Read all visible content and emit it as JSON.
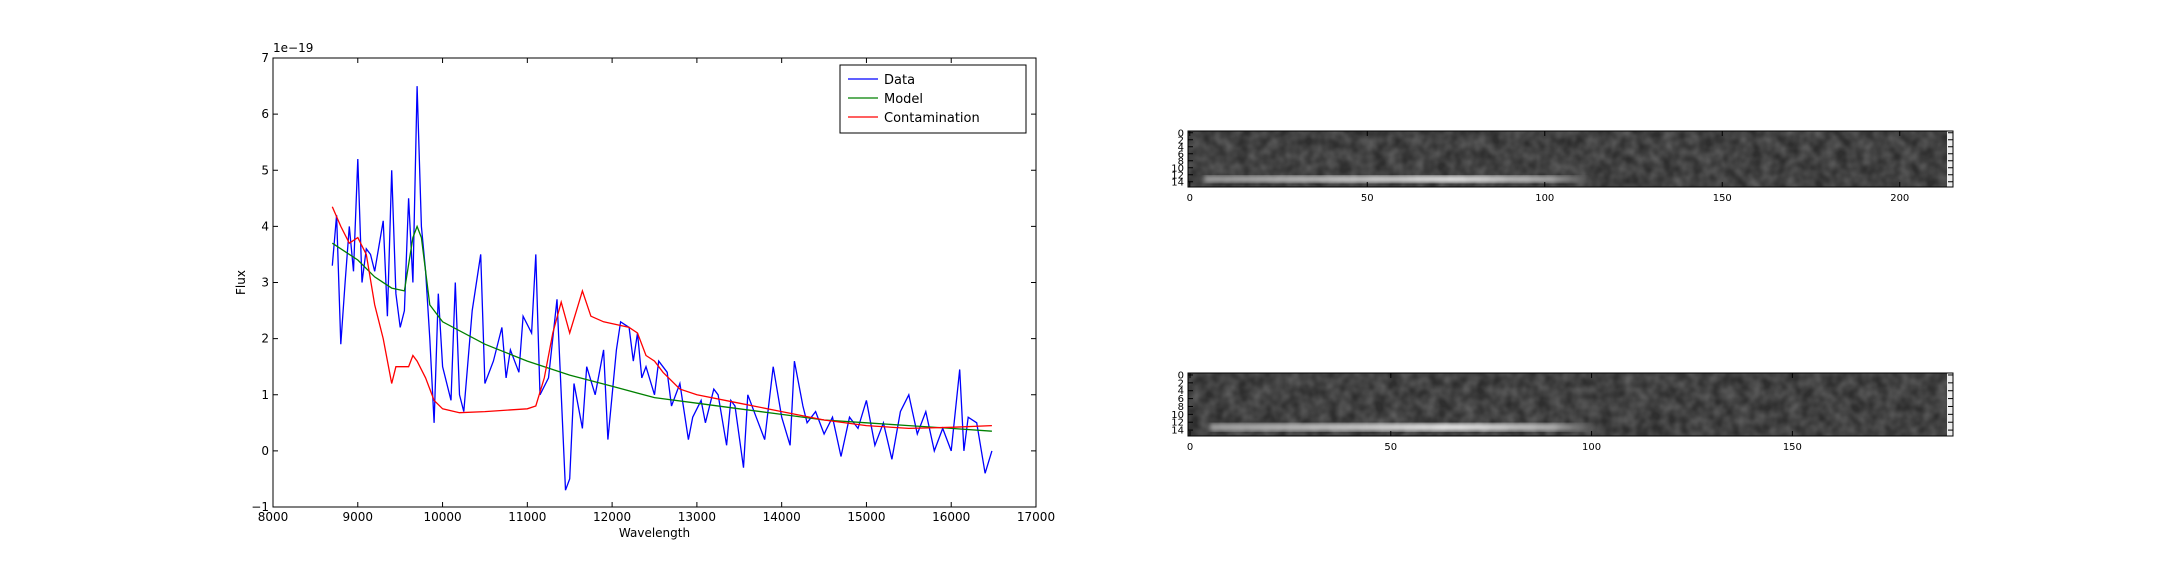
{
  "chart_data": [
    {
      "type": "line",
      "xlabel": "Wavelength",
      "ylabel": "Flux",
      "offset_label": "1e−19",
      "xlim": [
        8000,
        17000
      ],
      "xticks": [
        8000,
        9000,
        10000,
        11000,
        12000,
        13000,
        14000,
        15000,
        16000,
        17000
      ],
      "ylim": [
        -1,
        7
      ],
      "yticks": [
        {
          "value": -1,
          "label": "−1"
        },
        0,
        1,
        2,
        3,
        4,
        5,
        6,
        7
      ],
      "legend": "upper right",
      "series": [
        {
          "name": "Data",
          "color": "#0000ff",
          "x": [
            8700,
            8750,
            8800,
            8850,
            8900,
            8950,
            9000,
            9050,
            9100,
            9150,
            9200,
            9300,
            9350,
            9400,
            9450,
            9500,
            9550,
            9600,
            9650,
            9700,
            9750,
            9800,
            9850,
            9900,
            9950,
            10000,
            10100,
            10150,
            10200,
            10250,
            10350,
            10450,
            10500,
            10600,
            10700,
            10750,
            10800,
            10900,
            10950,
            11050,
            11100,
            11150,
            11250,
            11350,
            11450,
            11500,
            11550,
            11650,
            11700,
            11800,
            11900,
            11950,
            12050,
            12100,
            12200,
            12250,
            12300,
            12350,
            12400,
            12500,
            12550,
            12650,
            12700,
            12800,
            12900,
            12950,
            13050,
            13100,
            13200,
            13250,
            13350,
            13400,
            13450,
            13550,
            13600,
            13700,
            13800,
            13900,
            14000,
            14100,
            14150,
            14250,
            14300,
            14400,
            14500,
            14600,
            14700,
            14800,
            14900,
            15000,
            15100,
            15200,
            15300,
            15400,
            15500,
            15600,
            15700,
            15800,
            15900,
            16000,
            16100,
            16150,
            16200,
            16300,
            16400,
            16480
          ],
          "values": [
            3.3,
            4.2,
            1.9,
            3.0,
            4.0,
            3.2,
            5.2,
            3.0,
            3.6,
            3.5,
            3.2,
            4.1,
            2.4,
            5.0,
            2.8,
            2.2,
            2.5,
            4.5,
            3.0,
            6.5,
            4.0,
            3.2,
            2.0,
            0.5,
            2.8,
            1.5,
            0.9,
            3.0,
            1.0,
            0.7,
            2.5,
            3.5,
            1.2,
            1.6,
            2.2,
            1.3,
            1.8,
            1.4,
            2.4,
            2.1,
            3.5,
            1.0,
            1.3,
            2.7,
            -0.7,
            -0.5,
            1.2,
            0.4,
            1.5,
            1.0,
            1.8,
            0.2,
            1.8,
            2.3,
            2.2,
            1.6,
            2.1,
            1.3,
            1.5,
            1.0,
            1.6,
            1.4,
            0.8,
            1.2,
            0.2,
            0.6,
            0.9,
            0.5,
            1.1,
            1.0,
            0.1,
            0.9,
            0.8,
            -0.3,
            1.0,
            0.6,
            0.2,
            1.5,
            0.6,
            0.1,
            1.6,
            0.8,
            0.5,
            0.7,
            0.3,
            0.6,
            -0.1,
            0.6,
            0.4,
            0.9,
            0.1,
            0.5,
            -0.15,
            0.7,
            1.0,
            0.3,
            0.7,
            0.0,
            0.4,
            0.0,
            1.45,
            0.0,
            0.6,
            0.5,
            -0.4,
            0.0
          ]
        },
        {
          "name": "Model",
          "color": "#008000",
          "x": [
            8700,
            9000,
            9200,
            9400,
            9550,
            9650,
            9700,
            9750,
            9850,
            10000,
            10500,
            11000,
            11500,
            12000,
            12500,
            13000,
            13500,
            14000,
            14500,
            15000,
            15500,
            16000,
            16480
          ],
          "values": [
            3.7,
            3.4,
            3.1,
            2.9,
            2.85,
            3.8,
            4.0,
            3.8,
            2.6,
            2.3,
            1.9,
            1.6,
            1.35,
            1.15,
            0.95,
            0.85,
            0.75,
            0.65,
            0.55,
            0.5,
            0.45,
            0.4,
            0.35
          ]
        },
        {
          "name": "Contamination",
          "color": "#ff0000",
          "x": [
            8700,
            8800,
            8900,
            9000,
            9100,
            9200,
            9300,
            9400,
            9450,
            9600,
            9650,
            9700,
            9800,
            9900,
            10000,
            10200,
            10500,
            11000,
            11100,
            11200,
            11300,
            11400,
            11500,
            11600,
            11650,
            11750,
            11900,
            12200,
            12300,
            12400,
            12500,
            12600,
            12800,
            13000,
            13500,
            14000,
            14500,
            15000,
            15500,
            16000,
            16480
          ],
          "values": [
            4.35,
            4.0,
            3.7,
            3.8,
            3.5,
            2.6,
            2.0,
            1.2,
            1.5,
            1.5,
            1.7,
            1.6,
            1.3,
            0.9,
            0.75,
            0.68,
            0.7,
            0.75,
            0.8,
            1.3,
            2.1,
            2.65,
            2.1,
            2.6,
            2.85,
            2.4,
            2.3,
            2.2,
            2.1,
            1.7,
            1.6,
            1.4,
            1.1,
            1.0,
            0.85,
            0.7,
            0.55,
            0.45,
            0.4,
            0.42,
            0.45
          ]
        }
      ]
    },
    {
      "type": "image",
      "xlim": [
        -0.5,
        215
      ],
      "xticks": [
        0,
        50,
        100,
        150,
        200
      ],
      "ylim": [
        15.5,
        -0.5
      ],
      "yticks": [
        0,
        2,
        4,
        6,
        8,
        10,
        12,
        14
      ]
    },
    {
      "type": "image",
      "xlim": [
        -0.5,
        190
      ],
      "xticks": [
        0,
        50,
        100,
        150
      ],
      "ylim": [
        15.5,
        -0.5
      ],
      "yticks": [
        0,
        2,
        4,
        6,
        8,
        10,
        12,
        14
      ]
    }
  ]
}
